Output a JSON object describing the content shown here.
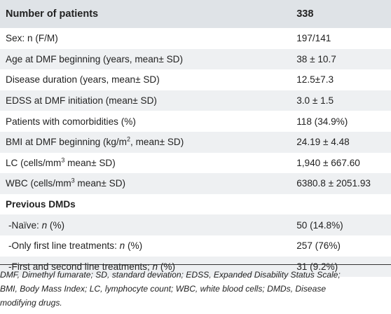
{
  "table": {
    "header": {
      "label": "Number of patients",
      "value": "338"
    },
    "rows": [
      {
        "label": "Sex: n (F/M)",
        "value": "197/141"
      },
      {
        "label": "Age at DMF beginning (years, mean± SD)",
        "value": "38 ± 10.7"
      },
      {
        "label": "Disease duration (years, mean± SD)",
        "value": "12.5±7.3"
      },
      {
        "label": "EDSS at DMF initiation (mean± SD)",
        "value": "3.0 ± 1.5"
      },
      {
        "label": "Patients with comorbidities (%)",
        "value": "118 (34.9%)"
      },
      {
        "label_pre": "BMI at DMF beginning (kg/m",
        "label_sup": "2",
        "label_post": ", mean± SD)",
        "value": "24.19 ± 4.48"
      },
      {
        "label_pre": "LC (cells/mm",
        "label_sup": "3",
        "label_post": " mean± SD)",
        "value": "1,940 ± 667.60"
      },
      {
        "label_pre": "WBC (cells/mm",
        "label_sup": "3",
        "label_post": " mean± SD)",
        "value": "6380.8 ± 2051.93"
      }
    ],
    "section": {
      "label": "Previous DMDs"
    },
    "sub_rows": [
      {
        "label_pre": "-Naïve: ",
        "label_italic": "n",
        "label_post": " (%)",
        "value": "50 (14.8%)"
      },
      {
        "label_pre": "-Only first line treatments: ",
        "label_italic": "n",
        "label_post": " (%)",
        "value": "257 (76%)"
      },
      {
        "label_pre": "-First and second line treatments; ",
        "label_italic": "n",
        "label_post": " (%)",
        "value": "31 (9.2%)"
      }
    ]
  },
  "footnote": "DMF, Dimethyl fumarate; SD, standard deviation; EDSS, Expanded Disability Status Scale;\nBMI, Body Mass Index; LC, lymphocyte count; WBC, white blood cells; DMDs, Disease\nmodifying drugs."
}
